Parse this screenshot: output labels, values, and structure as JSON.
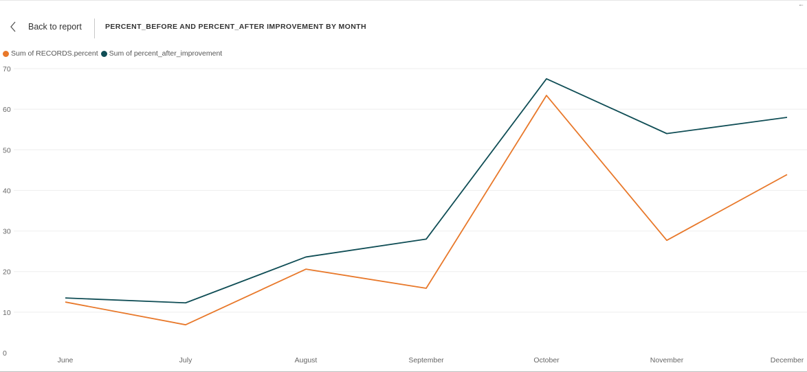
{
  "header": {
    "back_label": "Back to report",
    "title": "PERCENT_BEFORE AND PERCENT_AFTER IMPROVEMENT BY MONTH",
    "corner_mark": "←"
  },
  "colors": {
    "before": "#E8782A",
    "after": "#0F4D55",
    "grid": "#eeeeee"
  },
  "chart_data": {
    "type": "line",
    "title": "PERCENT_BEFORE AND PERCENT_AFTER IMPROVEMENT BY MONTH",
    "categories": [
      "June",
      "July",
      "August",
      "September",
      "October",
      "November",
      "December"
    ],
    "series": [
      {
        "name": "Sum of RECORDS.percent",
        "values": [
          12.5,
          6.9,
          20.6,
          15.9,
          63.4,
          27.7,
          43.9
        ]
      },
      {
        "name": "Sum of percent_after_improvement",
        "values": [
          13.5,
          12.3,
          23.6,
          28.0,
          67.5,
          54.0,
          58.0
        ]
      }
    ],
    "ylim": [
      0,
      70
    ],
    "yticks": [
      0,
      10,
      20,
      30,
      40,
      50,
      60,
      70
    ],
    "grid": true,
    "legend": "top-left"
  }
}
